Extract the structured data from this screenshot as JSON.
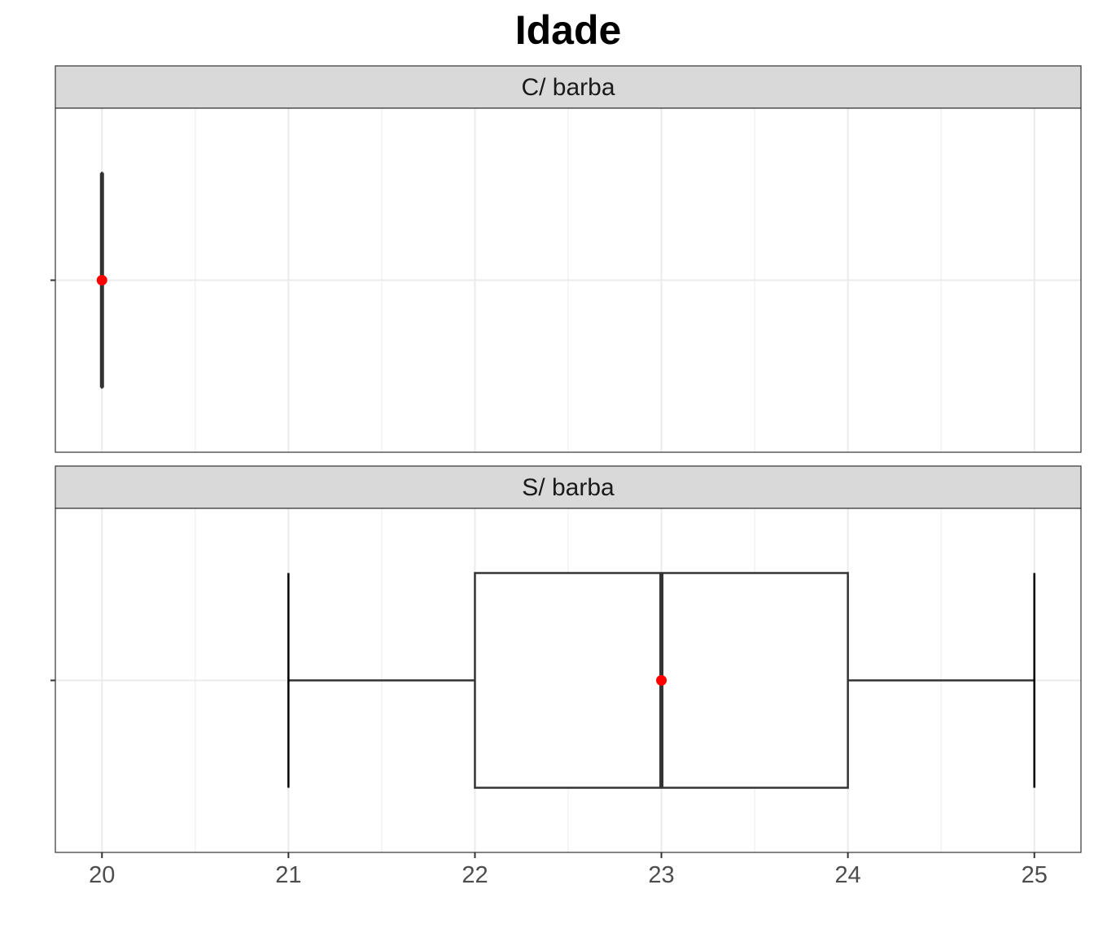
{
  "chart_data": {
    "type": "boxplot",
    "title": "Idade",
    "xlabel": "",
    "ylabel": "",
    "xlim": [
      19.75,
      25.25
    ],
    "x_ticks": [
      20,
      21,
      22,
      23,
      24,
      25
    ],
    "x_tick_labels": [
      "20",
      "21",
      "22",
      "23",
      "24",
      "25"
    ],
    "x_minor_ticks": [
      20.5,
      21.5,
      22.5,
      23.5,
      24.5
    ],
    "grid": true,
    "legend": "none",
    "colors": {
      "box": "#333333",
      "mean_point": "#ff0000",
      "strip_fill": "#d9d9d9",
      "grid": "#ebebeb",
      "panel_border": "#333333"
    },
    "facets": [
      {
        "label": "C/ barba",
        "min": 20,
        "q1": 20,
        "median": 20,
        "q3": 20,
        "max": 20,
        "mean": 20
      },
      {
        "label": "S/ barba",
        "min": 21,
        "q1": 22,
        "median": 23,
        "q3": 24,
        "max": 25,
        "mean": 23
      }
    ]
  }
}
